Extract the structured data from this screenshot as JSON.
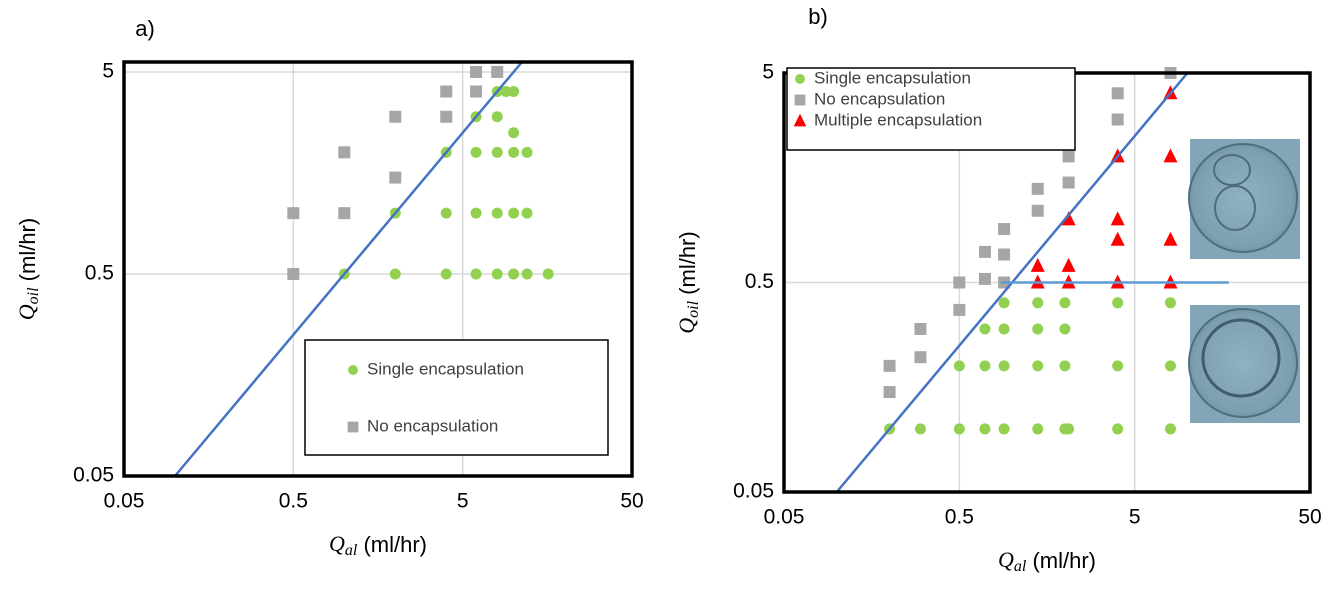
{
  "chart_data": [
    {
      "type": "scatter",
      "panel_label": "a)",
      "xlabel": {
        "symbol": "Q",
        "subscript": "al",
        "unit": " (ml/hr)"
      },
      "ylabel": {
        "symbol": "Q",
        "subscript": "oil",
        "unit": " (ml/hr)"
      },
      "xscale": "log",
      "yscale": "log",
      "xlim": [
        0.05,
        50
      ],
      "ylim": [
        0.05,
        5.6
      ],
      "xticks": [
        0.05,
        0.5,
        5,
        50
      ],
      "yticks": [
        0.05,
        0.5,
        5
      ],
      "grid": true,
      "legend": "bottom-right",
      "series": [
        {
          "name": "Single encapsulation",
          "color": "#92d050",
          "marker": "circle",
          "x": [
            1,
            2,
            4,
            6,
            8,
            10,
            12,
            16,
            2,
            4,
            6,
            8,
            10,
            12,
            4,
            6,
            8,
            10,
            12,
            10,
            6,
            8,
            8,
            9,
            10
          ],
          "values": [
            0.5,
            0.5,
            0.5,
            0.5,
            0.5,
            0.5,
            0.5,
            0.5,
            1,
            1,
            1,
            1,
            1,
            1,
            2,
            2,
            2,
            2,
            2,
            2.5,
            3,
            3,
            4,
            4,
            4
          ]
        },
        {
          "name": "No encapsulation",
          "color": "#a6a6a6",
          "marker": "square",
          "x": [
            0.5,
            0.5,
            1,
            1,
            2,
            2,
            4,
            4,
            6,
            6,
            8
          ],
          "values": [
            0.5,
            1,
            1,
            2,
            1.5,
            3,
            3,
            4,
            4,
            5,
            5
          ]
        }
      ],
      "lines": [
        {
          "color": "#4472c4",
          "x": [
            0.1,
            11.2
          ],
          "values": [
            0.05,
            5.6
          ]
        }
      ]
    },
    {
      "type": "scatter",
      "panel_label": "b)",
      "xlabel": {
        "symbol": "Q",
        "subscript": "al",
        "unit": " (ml/hr)"
      },
      "ylabel": {
        "symbol": "Q",
        "subscript": "oil",
        "unit": " (ml/hr)"
      },
      "xscale": "log",
      "yscale": "log",
      "xlim": [
        0.05,
        50
      ],
      "ylim": [
        0.05,
        5
      ],
      "xticks": [
        0.05,
        0.5,
        5,
        50
      ],
      "yticks": [
        0.05,
        0.5,
        5
      ],
      "grid": true,
      "legend": "top-left",
      "series": [
        {
          "name": "Single encapsulation",
          "color": "#92d050",
          "marker": "circle",
          "x": [
            0.2,
            0.3,
            0.5,
            0.7,
            0.9,
            1.4,
            2,
            2.1,
            4,
            8,
            0.5,
            0.7,
            0.9,
            1.4,
            2,
            4,
            8,
            0.7,
            0.9,
            1.4,
            2,
            0.9,
            1.4,
            2,
            4,
            8
          ],
          "values": [
            0.1,
            0.1,
            0.1,
            0.1,
            0.1,
            0.1,
            0.1,
            0.1,
            0.1,
            0.1,
            0.2,
            0.2,
            0.2,
            0.2,
            0.2,
            0.2,
            0.2,
            0.3,
            0.3,
            0.3,
            0.3,
            0.4,
            0.4,
            0.4,
            0.4,
            0.4
          ]
        },
        {
          "name": "No encapsulation",
          "color": "#a6a6a6",
          "marker": "square",
          "x": [
            0.2,
            0.2,
            0.3,
            0.3,
            0.5,
            0.5,
            0.7,
            0.7,
            0.9,
            0.9,
            0.9,
            1.4,
            1.4,
            2.1,
            2.1,
            4,
            4,
            8
          ],
          "values": [
            0.15,
            0.2,
            0.22,
            0.3,
            0.37,
            0.5,
            0.52,
            0.7,
            0.5,
            0.68,
            0.9,
            1.1,
            1.4,
            1.5,
            2,
            3,
            4,
            5
          ]
        },
        {
          "name": "Multiple encapsulation",
          "color": "#ff0000",
          "marker": "triangle",
          "x": [
            1.4,
            1.4,
            2.1,
            2.1,
            2.1,
            4,
            4,
            4,
            4,
            8,
            8,
            8,
            8
          ],
          "values": [
            0.5,
            0.6,
            0.5,
            0.6,
            1,
            0.5,
            0.8,
            1,
            2,
            0.5,
            0.8,
            2,
            4
          ]
        }
      ],
      "lines": [
        {
          "color": "#4472c4",
          "x": [
            0.1,
            10
          ],
          "values": [
            0.05,
            5
          ]
        },
        {
          "color": "#5b9bd5",
          "x": [
            0.86,
            17.2
          ],
          "values": [
            0.5,
            0.5
          ]
        }
      ]
    }
  ]
}
